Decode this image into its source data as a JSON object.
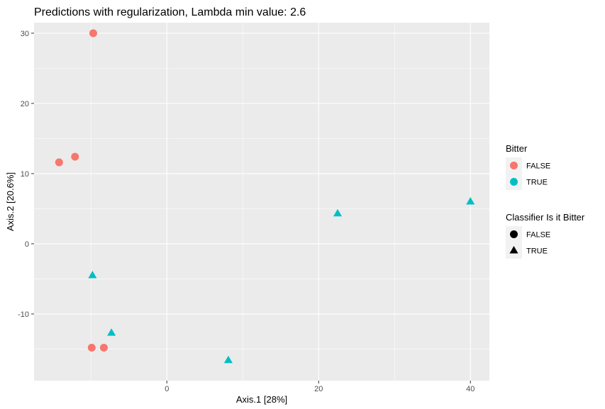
{
  "chart_data": {
    "type": "scatter",
    "title": "Predictions with regularization, Lambda min value:  2.6",
    "xlabel": "Axis.1   [28%]",
    "ylabel": "Axis.2   [20.6%]",
    "xlim": [
      -17.5,
      42.5
    ],
    "ylim": [
      -19.5,
      31.5
    ],
    "x_ticks": [
      0,
      20,
      40
    ],
    "x_tick_labels": [
      "0",
      "20",
      "40"
    ],
    "y_ticks": [
      -10,
      0,
      10,
      20,
      30
    ],
    "y_tick_labels": [
      "-10",
      "0",
      "10",
      "20",
      "30"
    ],
    "grid": true,
    "legend_position": "right",
    "colors": {
      "FALSE": "#F8766D",
      "TRUE": "#00BFC4"
    },
    "points": [
      {
        "x": -9.7,
        "y": 30.0,
        "bitter": "FALSE",
        "classifier": "FALSE"
      },
      {
        "x": -14.2,
        "y": 11.6,
        "bitter": "FALSE",
        "classifier": "FALSE"
      },
      {
        "x": -12.1,
        "y": 12.4,
        "bitter": "FALSE",
        "classifier": "FALSE"
      },
      {
        "x": -9.9,
        "y": -14.8,
        "bitter": "FALSE",
        "classifier": "FALSE"
      },
      {
        "x": -8.3,
        "y": -14.8,
        "bitter": "FALSE",
        "classifier": "FALSE"
      },
      {
        "x": -9.8,
        "y": -4.5,
        "bitter": "TRUE",
        "classifier": "TRUE"
      },
      {
        "x": -7.3,
        "y": -12.7,
        "bitter": "TRUE",
        "classifier": "TRUE"
      },
      {
        "x": 8.1,
        "y": -16.6,
        "bitter": "TRUE",
        "classifier": "TRUE"
      },
      {
        "x": 22.5,
        "y": 4.3,
        "bitter": "TRUE",
        "classifier": "TRUE"
      },
      {
        "x": 40.0,
        "y": 6.0,
        "bitter": "TRUE",
        "classifier": "TRUE"
      }
    ],
    "legends": [
      {
        "title": "Bitter",
        "kind": "color",
        "items": [
          "FALSE",
          "TRUE"
        ]
      },
      {
        "title": "Classifier Is it Bitter",
        "kind": "shape",
        "items": [
          "FALSE",
          "TRUE"
        ]
      }
    ]
  }
}
